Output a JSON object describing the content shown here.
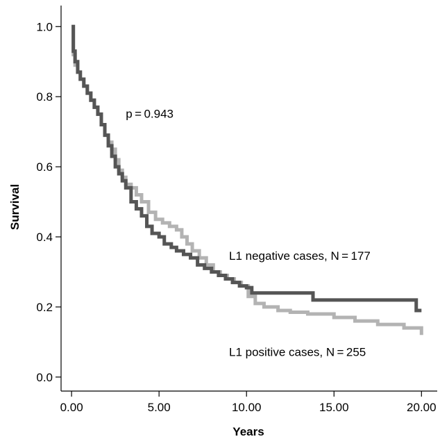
{
  "chart_data": {
    "type": "line",
    "title": "",
    "xlabel": "Years",
    "ylabel": "Survival",
    "xlim": [
      -0.6,
      20.9
    ],
    "ylim": [
      -0.04,
      1.06
    ],
    "x_ticks": [
      0,
      5,
      10,
      15,
      20
    ],
    "x_tick_labels": [
      "0.00",
      "5.00",
      "10.00",
      "15.00",
      "20.00"
    ],
    "y_ticks": [
      0,
      0.2,
      0.4,
      0.6,
      0.8,
      1.0
    ],
    "y_tick_labels": [
      "0.0",
      "0.2",
      "0.4",
      "0.6",
      "0.8",
      "1.0"
    ],
    "grid": false,
    "annotations": [
      {
        "text": "p = 0.943",
        "x": 3.1,
        "y": 0.74
      },
      {
        "text": "L1 negative cases, N = 177",
        "x": 9.0,
        "y": 0.335
      },
      {
        "text": "L1 positive cases, N = 255",
        "x": 9.0,
        "y": 0.06
      }
    ],
    "series": [
      {
        "name": "L1 negative cases, N=177",
        "color": "#555555",
        "x": [
          0,
          0.1,
          0.2,
          0.35,
          0.5,
          0.7,
          0.9,
          1.1,
          1.3,
          1.5,
          1.7,
          1.9,
          2.1,
          2.3,
          2.5,
          2.7,
          2.9,
          3.1,
          3.4,
          3.7,
          4.0,
          4.3,
          4.6,
          5.0,
          5.3,
          5.7,
          6.0,
          6.4,
          6.8,
          7.2,
          7.6,
          8.0,
          8.4,
          8.8,
          9.2,
          9.6,
          10.0,
          10.3,
          13.8,
          19.7,
          20.0
        ],
        "y": [
          1.0,
          0.93,
          0.9,
          0.87,
          0.85,
          0.83,
          0.81,
          0.79,
          0.77,
          0.75,
          0.72,
          0.69,
          0.66,
          0.63,
          0.6,
          0.58,
          0.56,
          0.54,
          0.5,
          0.48,
          0.46,
          0.43,
          0.41,
          0.4,
          0.38,
          0.37,
          0.36,
          0.35,
          0.34,
          0.32,
          0.31,
          0.3,
          0.29,
          0.28,
          0.27,
          0.26,
          0.255,
          0.24,
          0.22,
          0.19,
          0.19
        ]
      },
      {
        "name": "L1 positive cases, N=255",
        "color": "#b3b3b3",
        "x": [
          0,
          0.1,
          0.2,
          0.35,
          0.5,
          0.7,
          0.9,
          1.1,
          1.3,
          1.5,
          1.7,
          1.9,
          2.1,
          2.3,
          2.5,
          2.7,
          2.9,
          3.1,
          3.4,
          3.7,
          4.0,
          4.4,
          4.8,
          5.2,
          5.6,
          6.0,
          6.3,
          6.6,
          6.9,
          7.3,
          7.7,
          8.1,
          8.5,
          8.9,
          9.3,
          9.7,
          10.1,
          10.5,
          11.0,
          11.8,
          12.5,
          13.5,
          15.0,
          16.2,
          17.5,
          19.0,
          20.0
        ],
        "y": [
          1.0,
          0.92,
          0.89,
          0.87,
          0.85,
          0.83,
          0.81,
          0.79,
          0.77,
          0.75,
          0.72,
          0.69,
          0.67,
          0.65,
          0.62,
          0.59,
          0.57,
          0.55,
          0.54,
          0.52,
          0.5,
          0.47,
          0.45,
          0.44,
          0.43,
          0.42,
          0.4,
          0.38,
          0.36,
          0.34,
          0.32,
          0.3,
          0.29,
          0.28,
          0.27,
          0.26,
          0.23,
          0.21,
          0.2,
          0.19,
          0.185,
          0.18,
          0.17,
          0.16,
          0.15,
          0.14,
          0.12
        ]
      }
    ]
  }
}
